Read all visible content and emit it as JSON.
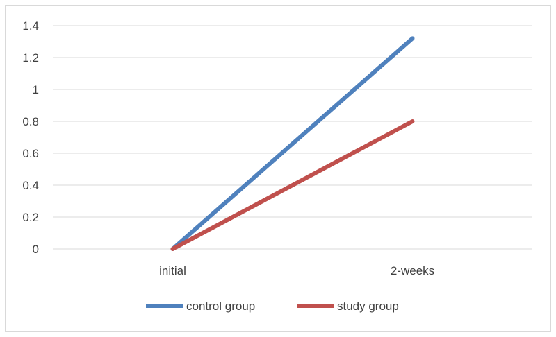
{
  "chart_data": {
    "type": "line",
    "title": "",
    "xlabel": "",
    "ylabel": "",
    "categories": [
      "initial",
      "2-weeks"
    ],
    "ylim": [
      0,
      1.4
    ],
    "yticks": [
      "0",
      "0.2",
      "0.4",
      "0.6",
      "0.8",
      "1",
      "1.2",
      "1.4"
    ],
    "grid": true,
    "legend_position": "bottom",
    "series": [
      {
        "name": "control group",
        "values": [
          0,
          1.32
        ],
        "color": "#4f81bd"
      },
      {
        "name": "study group",
        "values": [
          0,
          0.8
        ],
        "color": "#c0504d"
      }
    ]
  }
}
